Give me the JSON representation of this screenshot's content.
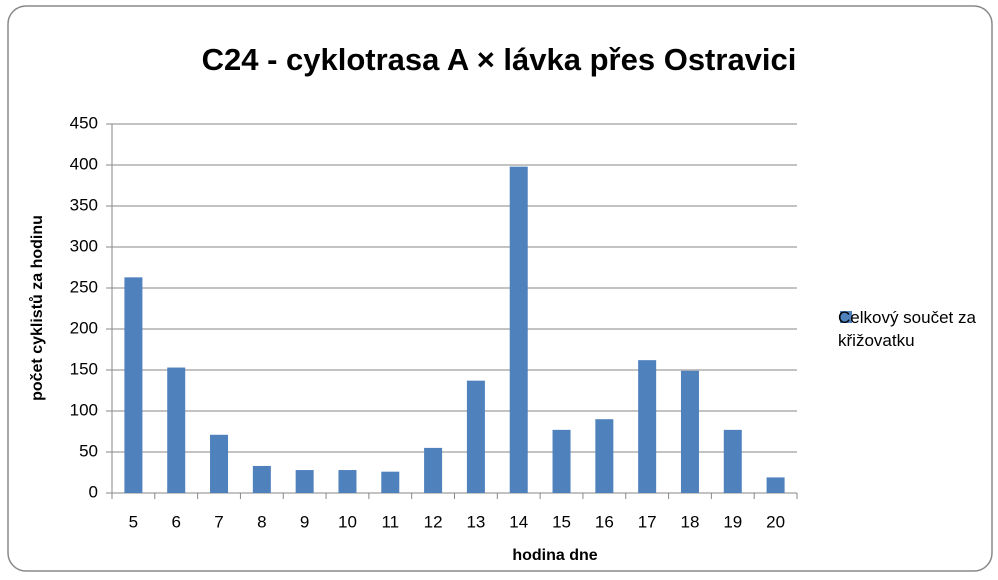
{
  "chart_data": {
    "type": "bar",
    "title": "C24 - cyklotrasa A × lávka přes Ostravici",
    "x_label": "hodina dne",
    "y_label": "počet cyklistů za hodinu",
    "categories": [
      "5",
      "6",
      "7",
      "8",
      "9",
      "10",
      "11",
      "12",
      "13",
      "14",
      "15",
      "16",
      "17",
      "18",
      "19",
      "20"
    ],
    "series": [
      {
        "name": "Celkový součet za křižovatku",
        "color": "#4f81bd",
        "values": [
          263,
          153,
          71,
          33,
          28,
          28,
          26,
          55,
          137,
          398,
          77,
          90,
          162,
          149,
          77,
          19
        ]
      }
    ],
    "ylim": [
      0,
      450
    ],
    "yticks": [
      0,
      50,
      100,
      150,
      200,
      250,
      300,
      350,
      400,
      450
    ],
    "grid": true,
    "legend": "right"
  }
}
